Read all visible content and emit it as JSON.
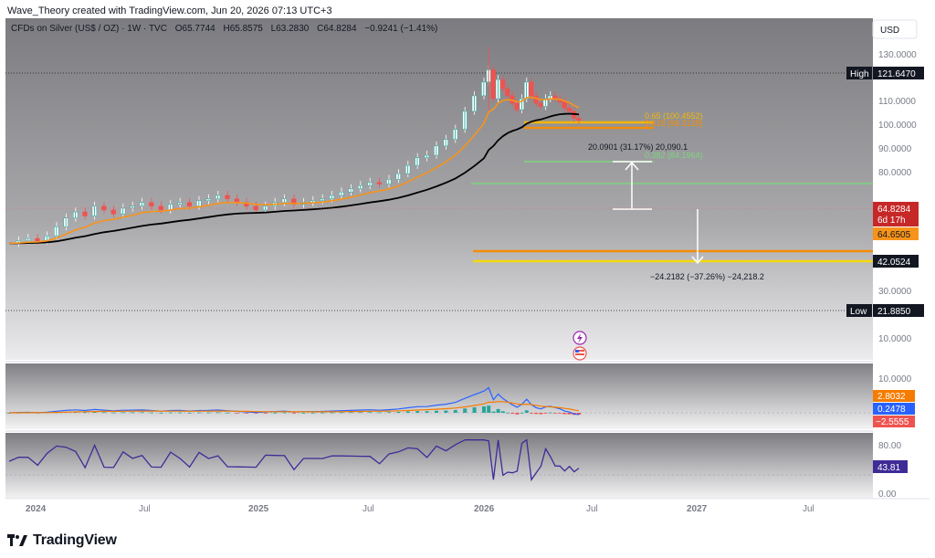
{
  "header": {
    "attribution": "Wave_Theory created with TradingView.com, Jun 20, 2026 07:13 UTC+3"
  },
  "legend": {
    "symbol": "CFDs on Silver (US$ / OZ) · 1W · TVC",
    "o_label": "O",
    "o": "65.7744",
    "h_label": "H",
    "h": "65.8575",
    "l_label": "L",
    "l": "63.2830",
    "c_label": "C",
    "c": "64.8284",
    "change": "−0.9241 (−1.41%)"
  },
  "currency_button": "USD",
  "price_axis": {
    "ticks": [
      "130.0000",
      "110.0000",
      "100.0000",
      "90.0000",
      "80.0000",
      "30.0000",
      "10.0000"
    ]
  },
  "price_labels": {
    "high_tag": "High",
    "high_value": "121.6470",
    "low_tag": "Low",
    "low_value": "21.8850",
    "last_price": "64.8284",
    "countdown": "6d 17h",
    "ema50": "64.6505",
    "ema200": "42.0524"
  },
  "fib_labels": {
    "f065": "0.65 (100.4552)",
    "f0618": "0.618 (98.3128)",
    "f0382": "0.382 (84.1964)"
  },
  "measure_labels": {
    "up": "20.0901 (31.17%) 20,090.1",
    "down": "−24.2182 (−37.26%) −24,218.2"
  },
  "macd": {
    "axis_tick": "10.0000",
    "signal_value": "2.8032",
    "macd_value": "0.2478",
    "hist_value": "−2.5555"
  },
  "rsi": {
    "axis_ticks": [
      "80.00",
      "0.00"
    ],
    "value": "43.81"
  },
  "time_axis": {
    "labels": [
      "2024",
      "Jul",
      "2025",
      "Jul",
      "2026",
      "Jul",
      "2027",
      "Jul"
    ]
  },
  "footer": {
    "brand": "TradingView"
  },
  "colors": {
    "up": "#26a69a",
    "down": "#ef5350",
    "ema50": "#f7931a",
    "ema200": "#000000",
    "fib618": "#f7b500",
    "fib382": "#7fd47f",
    "orange_line": "#f48c06",
    "yellow_line": "#f5d90a",
    "macd_line": "#2962ff",
    "signal_line": "#f57c00",
    "rsi": "#3f2b96"
  },
  "chart_data": {
    "type": "line",
    "title": "CFDs on Silver (US$ / OZ) · 1W · TVC",
    "x_labels": [
      "2024",
      "Jul",
      "2025",
      "Jul",
      "2026",
      "Jul",
      "2027",
      "Jul"
    ],
    "series": [
      {
        "values": [
          [
            0,
            22.5
          ],
          [
            2,
            23
          ],
          [
            4,
            23.5
          ],
          [
            6,
            23
          ],
          [
            8,
            24
          ],
          [
            10,
            26
          ],
          [
            12,
            28
          ],
          [
            14,
            29.5
          ],
          [
            16,
            28.5
          ],
          [
            18,
            31
          ],
          [
            20,
            30
          ],
          [
            22,
            29
          ],
          [
            24,
            30.5
          ],
          [
            26,
            31
          ],
          [
            28,
            32
          ],
          [
            30,
            31
          ],
          [
            32,
            30
          ],
          [
            34,
            31.5
          ],
          [
            36,
            32
          ],
          [
            38,
            31
          ],
          [
            40,
            32.5
          ],
          [
            42,
            33
          ],
          [
            44,
            34
          ],
          [
            46,
            33
          ],
          [
            48,
            32
          ],
          [
            50,
            31
          ],
          [
            52,
            30
          ],
          [
            54,
            31
          ],
          [
            56,
            32
          ],
          [
            58,
            33
          ],
          [
            60,
            31.5
          ],
          [
            62,
            32
          ],
          [
            64,
            32.5
          ],
          [
            66,
            33
          ],
          [
            68,
            34
          ],
          [
            70,
            35
          ],
          [
            72,
            36
          ],
          [
            74,
            37
          ],
          [
            76,
            38
          ],
          [
            78,
            37.5
          ],
          [
            80,
            39
          ],
          [
            82,
            41
          ],
          [
            84,
            44
          ],
          [
            86,
            47
          ],
          [
            88,
            48
          ],
          [
            90,
            52
          ],
          [
            92,
            55
          ],
          [
            94,
            60
          ],
          [
            96,
            70
          ],
          [
            98,
            80
          ],
          [
            100,
            90
          ],
          [
            101,
            100
          ],
          [
            102,
            78
          ],
          [
            103,
            92
          ],
          [
            104,
            85
          ],
          [
            105,
            80
          ],
          [
            106,
            75
          ],
          [
            107,
            71
          ],
          [
            108,
            78
          ],
          [
            109,
            90
          ],
          [
            110,
            80
          ],
          [
            111,
            75
          ],
          [
            112,
            73
          ],
          [
            113,
            78
          ],
          [
            114,
            80
          ],
          [
            115,
            78
          ],
          [
            116,
            76
          ],
          [
            117,
            72
          ],
          [
            118,
            70
          ],
          [
            119,
            66
          ],
          [
            120,
            64.8
          ]
        ]
      }
    ],
    "overlays": {
      "ema50_end": 64.6505,
      "ema200_end": 42.0524,
      "fib_0.65": 100.4552,
      "fib_0.618": 98.3128,
      "fib_0.382": 84.1964,
      "all_time_high": 121.647,
      "period_low": 21.885
    },
    "indicators": {
      "macd": {
        "signal": 2.8032,
        "macd": 0.2478,
        "histogram": -2.5555
      },
      "rsi": 43.81
    },
    "yscale": "log",
    "grid": false
  }
}
